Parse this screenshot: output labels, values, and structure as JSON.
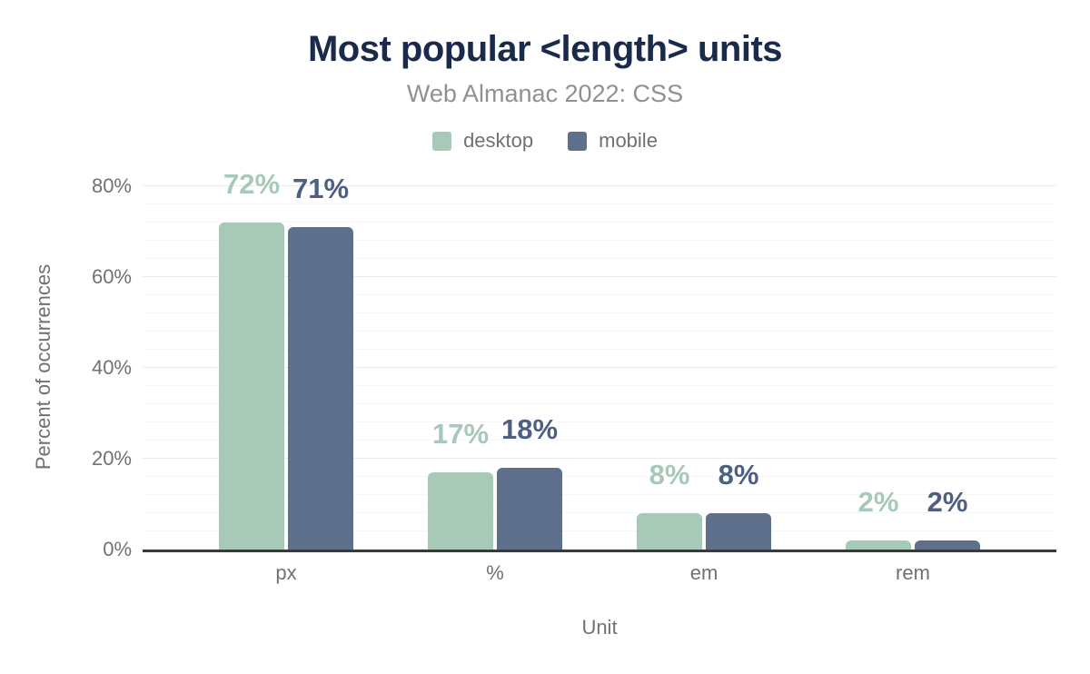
{
  "title": "Most popular <length> units",
  "subtitle": "Web Almanac 2022: CSS",
  "chart_data": {
    "type": "bar",
    "title": "Most popular <length> units",
    "subtitle": "Web Almanac 2022: CSS",
    "categories": [
      "px",
      "%",
      "em",
      "rem"
    ],
    "series": [
      {
        "name": "desktop",
        "values": [
          72,
          17,
          8,
          2
        ],
        "color": "#a6c9b8",
        "label_color": "#a6c9b8"
      },
      {
        "name": "mobile",
        "values": [
          71,
          18,
          8,
          2
        ],
        "color": "#5f708c",
        "label_color": "#4e6080"
      }
    ],
    "value_suffix": "%",
    "xlabel": "Unit",
    "ylabel": "Percent of occurrences",
    "ylim": [
      0,
      80
    ],
    "yticks": [
      "0%",
      "20%",
      "40%",
      "60%",
      "80%"
    ],
    "ytick_values": [
      0,
      20,
      40,
      60,
      80
    ],
    "grid": {
      "visible": true,
      "major_step": 20,
      "minor_step": 4
    },
    "legend_position": "top"
  },
  "colors": {
    "title": "#192a4b",
    "subtitle": "#8e9192",
    "axis_text": "#6e7273",
    "axis_line": "#3a3a3a",
    "gridline_major": "#ebebeb",
    "gridline_minor": "#f6f6f6",
    "background": "#ffffff"
  }
}
